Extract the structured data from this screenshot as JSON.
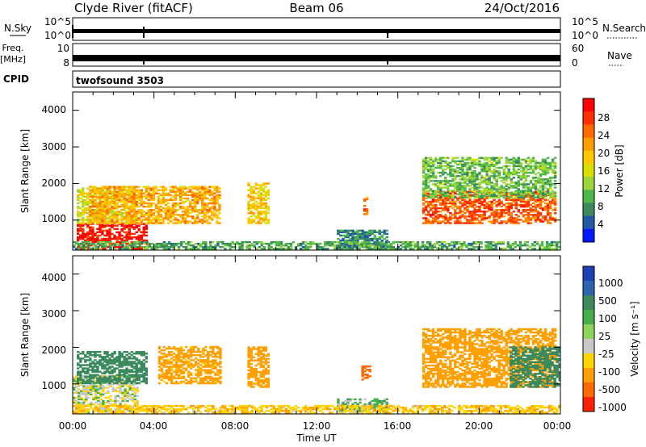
{
  "header": {
    "station": "Clyde River (fitACF)",
    "beam": "Beam 06",
    "date": "24/Oct/2016"
  },
  "ancillary": {
    "nsky_label": "N.Sky",
    "nsearch_label": "N.Search",
    "nsky_ticks": [
      "10^5",
      "10^0"
    ],
    "nsearch_ticks": [
      "10^5",
      "10^0"
    ],
    "freq_label": "Freq.",
    "freq_unit": "[MHz]",
    "freq_ticks": [
      "10",
      "8"
    ],
    "nave_label": "Nave",
    "nave_ticks": [
      "60",
      "0"
    ],
    "cpid_label": "CPID",
    "cpid_value": "twofsound 3503"
  },
  "power_panel": {
    "ylabel": "Slant Range [km]",
    "yticks": [
      "4000",
      "3000",
      "2000",
      "1000"
    ],
    "colorbar_label": "Power [dB]",
    "colorbar_ticks": [
      "28",
      "24",
      "20",
      "16",
      "12",
      "8",
      "4"
    ],
    "colors": [
      "#ff0000",
      "#ff3000",
      "#ff6a00",
      "#ff9d00",
      "#ffc800",
      "#d8e000",
      "#9ad63c",
      "#4fb84a",
      "#3a8a5e",
      "#1f5aa6",
      "#0018ff"
    ]
  },
  "velocity_panel": {
    "ylabel": "Slant Range [km]",
    "yticks": [
      "4000",
      "3000",
      "2000",
      "1000"
    ],
    "colorbar_label": "Velocity [m s⁻¹]",
    "colorbar_ticks": [
      "1000",
      "500",
      "100",
      "25",
      "-25",
      "-100",
      "-500",
      "-1000"
    ],
    "colors": [
      "#1f3fb4",
      "#2a66b0",
      "#3a8a5e",
      "#45b04a",
      "#8ed45a",
      "#c8c8c8",
      "#ffd400",
      "#ffa000",
      "#ff6a00",
      "#ff2000"
    ]
  },
  "xaxis": {
    "label": "Time UT",
    "ticks": [
      "00:00",
      "04:00",
      "08:00",
      "12:00",
      "16:00",
      "20:00",
      "00:00"
    ]
  },
  "chart_data": {
    "type": "heatmap",
    "title": "Clyde River (fitACF)  Beam 06  24/Oct/2016",
    "xlabel": "Time UT",
    "ylabel": "Slant Range [km]",
    "xlim": [
      "00:00",
      "24:00"
    ],
    "ylim": [
      180,
      4500
    ],
    "panels": [
      {
        "name": "Power [dB]",
        "zlim": [
          0,
          30
        ],
        "colorbar_ticks": [
          4,
          8,
          12,
          16,
          20,
          24,
          28
        ],
        "regions": [
          {
            "t": [
              0.2,
              3.6
            ],
            "r": [
              200,
              900
            ],
            "value": 29
          },
          {
            "t": [
              0.2,
              3.0
            ],
            "r": [
              900,
              1900
            ],
            "value": 15
          },
          {
            "t": [
              0.8,
              7.2
            ],
            "r": [
              900,
              1900
            ],
            "value": 20
          },
          {
            "t": [
              8.6,
              9.6
            ],
            "r": [
              900,
              2000
            ],
            "value": 18
          },
          {
            "t": [
              13.0,
              15.4
            ],
            "r": [
              200,
              700
            ],
            "value": 6
          },
          {
            "t": [
              14.3,
              14.5
            ],
            "r": [
              1100,
              1600
            ],
            "value": 22
          },
          {
            "t": [
              17.2,
              23.8
            ],
            "r": [
              900,
              1800
            ],
            "value": 25
          },
          {
            "t": [
              17.2,
              23.8
            ],
            "r": [
              1600,
              2700
            ],
            "value": 10
          },
          {
            "t": [
              0.0,
              24.0
            ],
            "r": [
              200,
              400
            ],
            "value": 8
          }
        ]
      },
      {
        "name": "Velocity [m s⁻¹]",
        "zlim": [
          -1000,
          1000
        ],
        "colorbar_ticks": [
          1000,
          500,
          100,
          25,
          -25,
          -100,
          -500,
          -1000
        ],
        "regions": [
          {
            "t": [
              0.0,
              3.2
            ],
            "r": [
              200,
              1200
            ],
            "value": 0
          },
          {
            "t": [
              0.2,
              3.6
            ],
            "r": [
              1000,
              1900
            ],
            "value": 300
          },
          {
            "t": [
              4.2,
              7.3
            ],
            "r": [
              1000,
              2000
            ],
            "value": -150
          },
          {
            "t": [
              8.6,
              9.6
            ],
            "r": [
              900,
              2000
            ],
            "value": -400
          },
          {
            "t": [
              13.0,
              15.4
            ],
            "r": [
              200,
              600
            ],
            "value": 60
          },
          {
            "t": [
              14.2,
              14.6
            ],
            "r": [
              1100,
              1500
            ],
            "value": -800
          },
          {
            "t": [
              17.2,
              23.8
            ],
            "r": [
              900,
              2500
            ],
            "value": -300
          },
          {
            "t": [
              21.5,
              24.0
            ],
            "r": [
              900,
              2000
            ],
            "value": 300
          },
          {
            "t": [
              0.0,
              24.0
            ],
            "r": [
              200,
              400
            ],
            "value": -80
          }
        ]
      }
    ]
  }
}
